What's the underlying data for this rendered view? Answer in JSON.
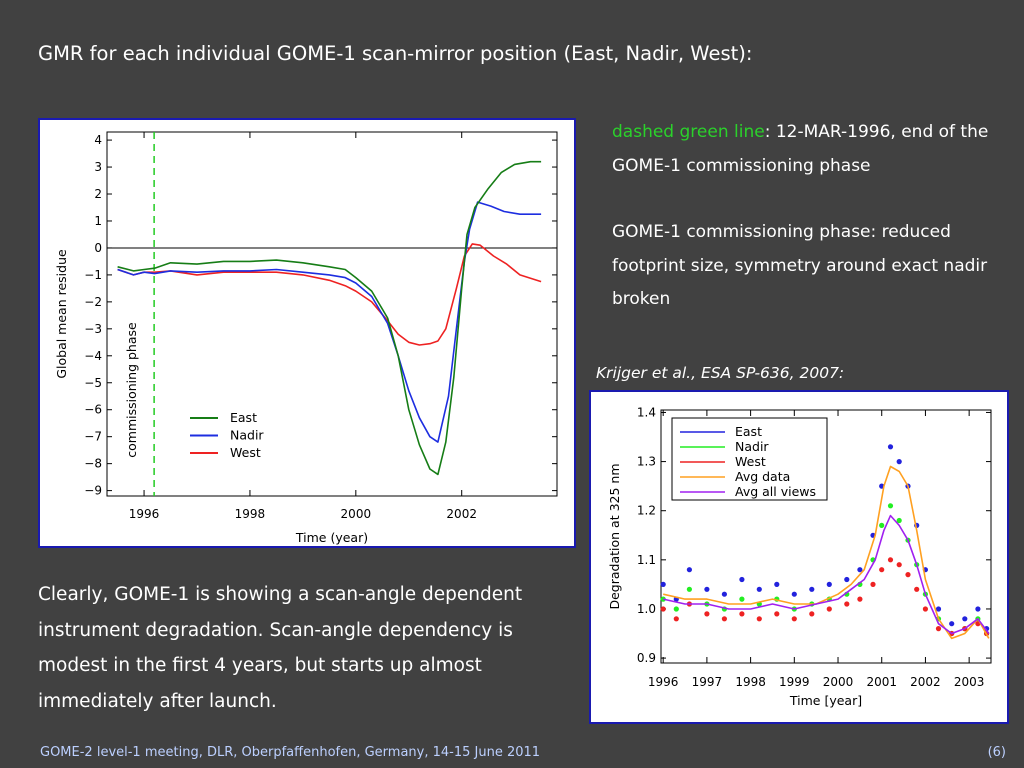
{
  "slide": {
    "title": "GMR for each individual GOME-1 scan-mirror position (East, Nadir, West):",
    "note1_highlight": "dashed green line",
    "note1_rest": ": 12-MAR-1996, end of the GOME-1 commissioning phase",
    "note2": "GOME-1 commissioning phase: reduced footprint size, symmetry around exact nadir broken",
    "citation": "Krijger et al., ESA SP-636, 2007:",
    "body": "Clearly, GOME-1 is showing a scan-angle dependent instrument degradation. Scan-angle dependency is modest in the first 4 years, but starts up almost immediately after launch.",
    "footer": "GOME-2 level-1 meeting, DLR, Oberpfaffenhofen, Germany, 14-15 June 2011",
    "page": "(6)"
  },
  "colors": {
    "background": "#414141",
    "highlight": "#2bd12b",
    "frame": "#1a1ab0"
  },
  "chart_data": [
    {
      "type": "line",
      "xlabel": "Time (year)",
      "ylabel": "Global  mean  residue",
      "xlim": [
        1995.3,
        2003.8
      ],
      "ylim": [
        -9.2,
        4.3
      ],
      "xticks": [
        1996,
        1998,
        2000,
        2002
      ],
      "yticks": [
        4,
        3,
        2,
        1,
        0,
        -1,
        -2,
        -3,
        -4,
        -5,
        -6,
        -7,
        -8,
        -9
      ],
      "hline": 0,
      "vline": {
        "x": 1996.19,
        "label": "commissioning phase",
        "style": "dashed",
        "color": "#22cc22"
      },
      "legend_position": "bottom-left",
      "series": [
        {
          "name": "East",
          "color": "#167d16",
          "points": [
            [
              1995.5,
              -0.7
            ],
            [
              1995.8,
              -0.85
            ],
            [
              1996.0,
              -0.8
            ],
            [
              1996.2,
              -0.75
            ],
            [
              1996.5,
              -0.55
            ],
            [
              1997.0,
              -0.6
            ],
            [
              1997.5,
              -0.5
            ],
            [
              1998.0,
              -0.5
            ],
            [
              1998.5,
              -0.45
            ],
            [
              1999.0,
              -0.55
            ],
            [
              1999.5,
              -0.7
            ],
            [
              1999.8,
              -0.8
            ],
            [
              2000.0,
              -1.1
            ],
            [
              2000.3,
              -1.6
            ],
            [
              2000.6,
              -2.6
            ],
            [
              2000.8,
              -4.0
            ],
            [
              2001.0,
              -6.0
            ],
            [
              2001.2,
              -7.3
            ],
            [
              2001.4,
              -8.2
            ],
            [
              2001.55,
              -8.4
            ],
            [
              2001.7,
              -7.2
            ],
            [
              2001.85,
              -4.8
            ],
            [
              2002.0,
              -1.5
            ],
            [
              2002.1,
              0.5
            ],
            [
              2002.25,
              1.5
            ],
            [
              2002.5,
              2.2
            ],
            [
              2002.75,
              2.8
            ],
            [
              2003.0,
              3.1
            ],
            [
              2003.3,
              3.2
            ],
            [
              2003.5,
              3.2
            ]
          ]
        },
        {
          "name": "Nadir",
          "color": "#1d2ee0",
          "points": [
            [
              1995.5,
              -0.8
            ],
            [
              1995.8,
              -1.0
            ],
            [
              1996.0,
              -0.9
            ],
            [
              1996.2,
              -0.95
            ],
            [
              1996.5,
              -0.85
            ],
            [
              1997.0,
              -0.9
            ],
            [
              1997.5,
              -0.85
            ],
            [
              1998.0,
              -0.85
            ],
            [
              1998.5,
              -0.8
            ],
            [
              1999.0,
              -0.9
            ],
            [
              1999.5,
              -1.0
            ],
            [
              1999.8,
              -1.1
            ],
            [
              2000.0,
              -1.3
            ],
            [
              2000.3,
              -1.8
            ],
            [
              2000.6,
              -2.8
            ],
            [
              2000.8,
              -4.0
            ],
            [
              2001.0,
              -5.3
            ],
            [
              2001.2,
              -6.3
            ],
            [
              2001.4,
              -7.0
            ],
            [
              2001.55,
              -7.2
            ],
            [
              2001.75,
              -5.5
            ],
            [
              2001.9,
              -3.0
            ],
            [
              2002.05,
              -0.5
            ],
            [
              2002.15,
              0.7
            ],
            [
              2002.3,
              1.7
            ],
            [
              2002.55,
              1.55
            ],
            [
              2002.8,
              1.35
            ],
            [
              2003.1,
              1.25
            ],
            [
              2003.5,
              1.25
            ]
          ]
        },
        {
          "name": "West",
          "color": "#ee2222",
          "points": [
            [
              1995.5,
              -0.8
            ],
            [
              1995.8,
              -1.0
            ],
            [
              1996.0,
              -0.9
            ],
            [
              1996.2,
              -0.9
            ],
            [
              1996.5,
              -0.85
            ],
            [
              1997.0,
              -1.0
            ],
            [
              1997.5,
              -0.9
            ],
            [
              1998.0,
              -0.9
            ],
            [
              1998.5,
              -0.9
            ],
            [
              1999.0,
              -1.0
            ],
            [
              1999.5,
              -1.2
            ],
            [
              1999.8,
              -1.4
            ],
            [
              2000.0,
              -1.6
            ],
            [
              2000.3,
              -2.0
            ],
            [
              2000.6,
              -2.7
            ],
            [
              2000.8,
              -3.2
            ],
            [
              2001.0,
              -3.5
            ],
            [
              2001.2,
              -3.6
            ],
            [
              2001.4,
              -3.55
            ],
            [
              2001.55,
              -3.45
            ],
            [
              2001.7,
              -3.0
            ],
            [
              2001.9,
              -1.5
            ],
            [
              2002.05,
              -0.3
            ],
            [
              2002.2,
              0.15
            ],
            [
              2002.35,
              0.1
            ],
            [
              2002.6,
              -0.3
            ],
            [
              2002.85,
              -0.6
            ],
            [
              2003.1,
              -1.0
            ],
            [
              2003.5,
              -1.25
            ]
          ]
        }
      ]
    },
    {
      "type": "scatter",
      "xlabel": "Time [year]",
      "ylabel": "Degradation  at  325  nm",
      "xlim": [
        1995.95,
        2003.5
      ],
      "ylim": [
        0.89,
        1.405
      ],
      "xticks": [
        1996,
        1997,
        1998,
        1999,
        2000,
        2001,
        2002,
        2003
      ],
      "yticks": [
        1.4,
        1.3,
        1.2,
        1.1,
        1.0,
        0.9
      ],
      "ytick_labels": [
        "1.4",
        "1.3",
        "1.2",
        "1.1",
        "1.0",
        "0.9"
      ],
      "legend_position": "top-left",
      "series": [
        {
          "name": "East",
          "color": "#2222dd",
          "kind": "points",
          "points": [
            [
              1996.0,
              1.05
            ],
            [
              1996.3,
              1.02
            ],
            [
              1996.6,
              1.08
            ],
            [
              1997.0,
              1.04
            ],
            [
              1997.4,
              1.03
            ],
            [
              1997.8,
              1.06
            ],
            [
              1998.2,
              1.04
            ],
            [
              1998.6,
              1.05
            ],
            [
              1999.0,
              1.03
            ],
            [
              1999.4,
              1.04
            ],
            [
              1999.8,
              1.05
            ],
            [
              2000.2,
              1.06
            ],
            [
              2000.5,
              1.08
            ],
            [
              2000.8,
              1.15
            ],
            [
              2001.0,
              1.25
            ],
            [
              2001.2,
              1.33
            ],
            [
              2001.4,
              1.3
            ],
            [
              2001.6,
              1.25
            ],
            [
              2001.8,
              1.17
            ],
            [
              2002.0,
              1.08
            ],
            [
              2002.3,
              1.0
            ],
            [
              2002.6,
              0.97
            ],
            [
              2002.9,
              0.98
            ],
            [
              2003.2,
              1.0
            ],
            [
              2003.4,
              0.96
            ]
          ]
        },
        {
          "name": "Nadir",
          "color": "#22ee22",
          "kind": "points",
          "points": [
            [
              1996.0,
              1.02
            ],
            [
              1996.3,
              1.0
            ],
            [
              1996.6,
              1.04
            ],
            [
              1997.0,
              1.01
            ],
            [
              1997.4,
              1.0
            ],
            [
              1997.8,
              1.02
            ],
            [
              1998.2,
              1.01
            ],
            [
              1998.6,
              1.02
            ],
            [
              1999.0,
              1.0
            ],
            [
              1999.4,
              1.01
            ],
            [
              1999.8,
              1.02
            ],
            [
              2000.2,
              1.03
            ],
            [
              2000.5,
              1.05
            ],
            [
              2000.8,
              1.1
            ],
            [
              2001.0,
              1.17
            ],
            [
              2001.2,
              1.21
            ],
            [
              2001.4,
              1.18
            ],
            [
              2001.6,
              1.14
            ],
            [
              2001.8,
              1.09
            ],
            [
              2002.0,
              1.03
            ],
            [
              2002.3,
              0.98
            ],
            [
              2002.6,
              0.95
            ],
            [
              2002.9,
              0.96
            ],
            [
              2003.2,
              0.98
            ],
            [
              2003.4,
              0.95
            ]
          ]
        },
        {
          "name": "West",
          "color": "#ee2222",
          "kind": "points",
          "points": [
            [
              1996.0,
              1.0
            ],
            [
              1996.3,
              0.98
            ],
            [
              1996.6,
              1.01
            ],
            [
              1997.0,
              0.99
            ],
            [
              1997.4,
              0.98
            ],
            [
              1997.8,
              0.99
            ],
            [
              1998.2,
              0.98
            ],
            [
              1998.6,
              0.99
            ],
            [
              1999.0,
              0.98
            ],
            [
              1999.4,
              0.99
            ],
            [
              1999.8,
              1.0
            ],
            [
              2000.2,
              1.01
            ],
            [
              2000.5,
              1.02
            ],
            [
              2000.8,
              1.05
            ],
            [
              2001.0,
              1.08
            ],
            [
              2001.2,
              1.1
            ],
            [
              2001.4,
              1.09
            ],
            [
              2001.6,
              1.07
            ],
            [
              2001.8,
              1.04
            ],
            [
              2002.0,
              1.0
            ],
            [
              2002.3,
              0.96
            ],
            [
              2002.6,
              0.95
            ],
            [
              2002.9,
              0.96
            ],
            [
              2003.2,
              0.97
            ],
            [
              2003.4,
              0.95
            ]
          ]
        },
        {
          "name": "Avg data",
          "color": "#ffa020",
          "kind": "line",
          "points": [
            [
              1996.0,
              1.03
            ],
            [
              1996.5,
              1.02
            ],
            [
              1997.0,
              1.02
            ],
            [
              1997.5,
              1.01
            ],
            [
              1998.0,
              1.01
            ],
            [
              1998.5,
              1.02
            ],
            [
              1999.0,
              1.01
            ],
            [
              1999.5,
              1.01
            ],
            [
              2000.0,
              1.03
            ],
            [
              2000.3,
              1.05
            ],
            [
              2000.6,
              1.08
            ],
            [
              2000.85,
              1.15
            ],
            [
              2001.05,
              1.25
            ],
            [
              2001.2,
              1.29
            ],
            [
              2001.4,
              1.28
            ],
            [
              2001.6,
              1.25
            ],
            [
              2001.8,
              1.16
            ],
            [
              2002.0,
              1.06
            ],
            [
              2002.3,
              0.98
            ],
            [
              2002.6,
              0.94
            ],
            [
              2002.9,
              0.95
            ],
            [
              2003.2,
              0.98
            ],
            [
              2003.45,
              0.94
            ]
          ]
        },
        {
          "name": "Avg all views",
          "color": "#a020f0",
          "kind": "line",
          "points": [
            [
              1996.0,
              1.02
            ],
            [
              1996.5,
              1.01
            ],
            [
              1997.0,
              1.01
            ],
            [
              1997.5,
              1.0
            ],
            [
              1998.0,
              1.0
            ],
            [
              1998.5,
              1.01
            ],
            [
              1999.0,
              1.0
            ],
            [
              1999.5,
              1.01
            ],
            [
              2000.0,
              1.02
            ],
            [
              2000.3,
              1.04
            ],
            [
              2000.6,
              1.06
            ],
            [
              2000.85,
              1.1
            ],
            [
              2001.05,
              1.16
            ],
            [
              2001.2,
              1.19
            ],
            [
              2001.4,
              1.17
            ],
            [
              2001.6,
              1.14
            ],
            [
              2001.8,
              1.09
            ],
            [
              2002.0,
              1.03
            ],
            [
              2002.3,
              0.97
            ],
            [
              2002.6,
              0.95
            ],
            [
              2002.9,
              0.96
            ],
            [
              2003.2,
              0.98
            ],
            [
              2003.45,
              0.95
            ]
          ]
        }
      ]
    }
  ]
}
